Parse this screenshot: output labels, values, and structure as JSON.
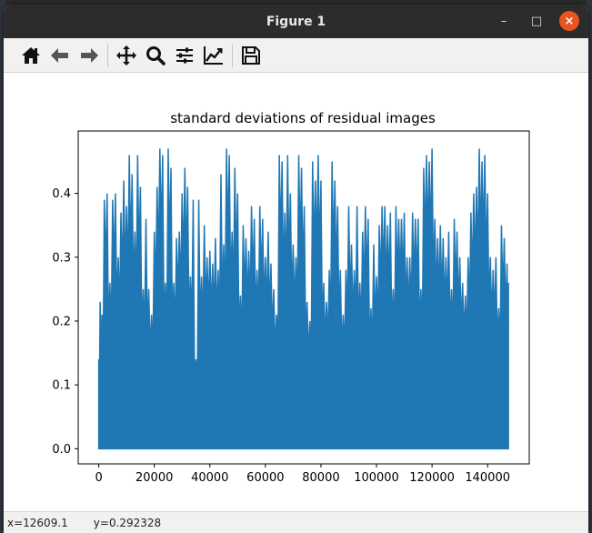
{
  "window": {
    "title": "Figure 1",
    "controls": {
      "minimize": "–",
      "maximize": "□",
      "close": "×"
    }
  },
  "toolbar": {
    "buttons": [
      {
        "name": "home",
        "icon": "home-icon"
      },
      {
        "name": "back",
        "icon": "arrow-left-icon"
      },
      {
        "name": "forward",
        "icon": "arrow-right-icon"
      },
      {
        "name": "pan",
        "icon": "move-icon"
      },
      {
        "name": "zoom",
        "icon": "magnifier-icon"
      },
      {
        "name": "configure-subplots",
        "icon": "sliders-icon"
      },
      {
        "name": "edit-axis",
        "icon": "line-chart-icon"
      },
      {
        "name": "save",
        "icon": "floppy-disk-icon"
      }
    ]
  },
  "status": {
    "x_readout": "x=12609.1",
    "y_readout": "y=0.292328"
  },
  "chart_data": {
    "type": "area",
    "title": "standard deviations of residual images",
    "xlabel": "",
    "ylabel": "",
    "xlim": [
      -7400,
      155000
    ],
    "ylim": [
      -0.0237,
      0.4977
    ],
    "xticks": [
      0,
      20000,
      40000,
      60000,
      80000,
      100000,
      120000,
      140000
    ],
    "xtick_labels": [
      "0",
      "20000",
      "40000",
      "60000",
      "80000",
      "100000",
      "120000",
      "140000"
    ],
    "yticks": [
      0.0,
      0.1,
      0.2,
      0.3,
      0.4
    ],
    "ytick_labels": [
      "0.0",
      "0.1",
      "0.2",
      "0.3",
      "0.4"
    ],
    "grid": false,
    "series_color": "#1f77b4",
    "envelope_x": [
      0,
      500,
      1200,
      2000,
      3000,
      4000,
      5000,
      6000,
      7000,
      8000,
      9000,
      10000,
      11000,
      12000,
      13000,
      14000,
      15000,
      16000,
      17000,
      18000,
      19000,
      20000,
      21000,
      22000,
      23000,
      24000,
      25000,
      26000,
      27000,
      28000,
      29000,
      30000,
      31000,
      32000,
      33000,
      34000,
      35000,
      36000,
      37000,
      38000,
      39000,
      40000,
      41000,
      42000,
      43000,
      44000,
      45000,
      46000,
      47000,
      48000,
      49000,
      50000,
      51000,
      52000,
      53000,
      54000,
      55000,
      56000,
      57000,
      58000,
      59000,
      60000,
      61000,
      62000,
      63000,
      64000,
      65000,
      66000,
      67000,
      68000,
      69000,
      70000,
      71000,
      72000,
      73000,
      74000,
      75000,
      76000,
      77000,
      78000,
      79000,
      80000,
      81000,
      82000,
      83000,
      84000,
      85000,
      86000,
      87000,
      88000,
      89000,
      90000,
      91000,
      92000,
      93000,
      94000,
      95000,
      96000,
      97000,
      98000,
      99000,
      100000,
      101000,
      102000,
      103000,
      104000,
      105000,
      106000,
      107000,
      108000,
      109000,
      110000,
      111000,
      112000,
      113000,
      114000,
      115000,
      116000,
      117000,
      118000,
      119000,
      120000,
      121000,
      122000,
      123000,
      124000,
      125000,
      126000,
      127000,
      128000,
      129000,
      130000,
      131000,
      132000,
      133000,
      134000,
      135000,
      136000,
      137000,
      138000,
      139000,
      140000,
      141000,
      142000,
      143000,
      144000,
      145000,
      146000,
      147000,
      147500
    ],
    "envelope_y": [
      0.14,
      0.23,
      0.21,
      0.39,
      0.4,
      0.26,
      0.39,
      0.4,
      0.3,
      0.37,
      0.42,
      0.38,
      0.46,
      0.43,
      0.34,
      0.46,
      0.41,
      0.25,
      0.36,
      0.25,
      0.21,
      0.34,
      0.41,
      0.47,
      0.46,
      0.26,
      0.47,
      0.44,
      0.26,
      0.33,
      0.34,
      0.4,
      0.44,
      0.41,
      0.27,
      0.39,
      0.14,
      0.39,
      0.27,
      0.35,
      0.3,
      0.31,
      0.29,
      0.33,
      0.28,
      0.43,
      0.32,
      0.47,
      0.46,
      0.34,
      0.44,
      0.4,
      0.24,
      0.35,
      0.33,
      0.31,
      0.38,
      0.36,
      0.28,
      0.38,
      0.36,
      0.3,
      0.34,
      0.29,
      0.25,
      0.21,
      0.46,
      0.45,
      0.37,
      0.46,
      0.4,
      0.32,
      0.3,
      0.46,
      0.44,
      0.38,
      0.23,
      0.2,
      0.45,
      0.42,
      0.46,
      0.42,
      0.26,
      0.23,
      0.28,
      0.45,
      0.42,
      0.38,
      0.28,
      0.21,
      0.28,
      0.38,
      0.32,
      0.28,
      0.38,
      0.26,
      0.34,
      0.38,
      0.36,
      0.22,
      0.32,
      0.27,
      0.35,
      0.38,
      0.38,
      0.35,
      0.37,
      0.25,
      0.38,
      0.36,
      0.36,
      0.37,
      0.3,
      0.3,
      0.37,
      0.36,
      0.36,
      0.25,
      0.44,
      0.46,
      0.45,
      0.47,
      0.36,
      0.33,
      0.35,
      0.33,
      0.3,
      0.34,
      0.25,
      0.36,
      0.34,
      0.3,
      0.26,
      0.24,
      0.3,
      0.37,
      0.4,
      0.41,
      0.47,
      0.45,
      0.46,
      0.4,
      0.3,
      0.28,
      0.3,
      0.22,
      0.35,
      0.33,
      0.29,
      0.26
    ]
  }
}
